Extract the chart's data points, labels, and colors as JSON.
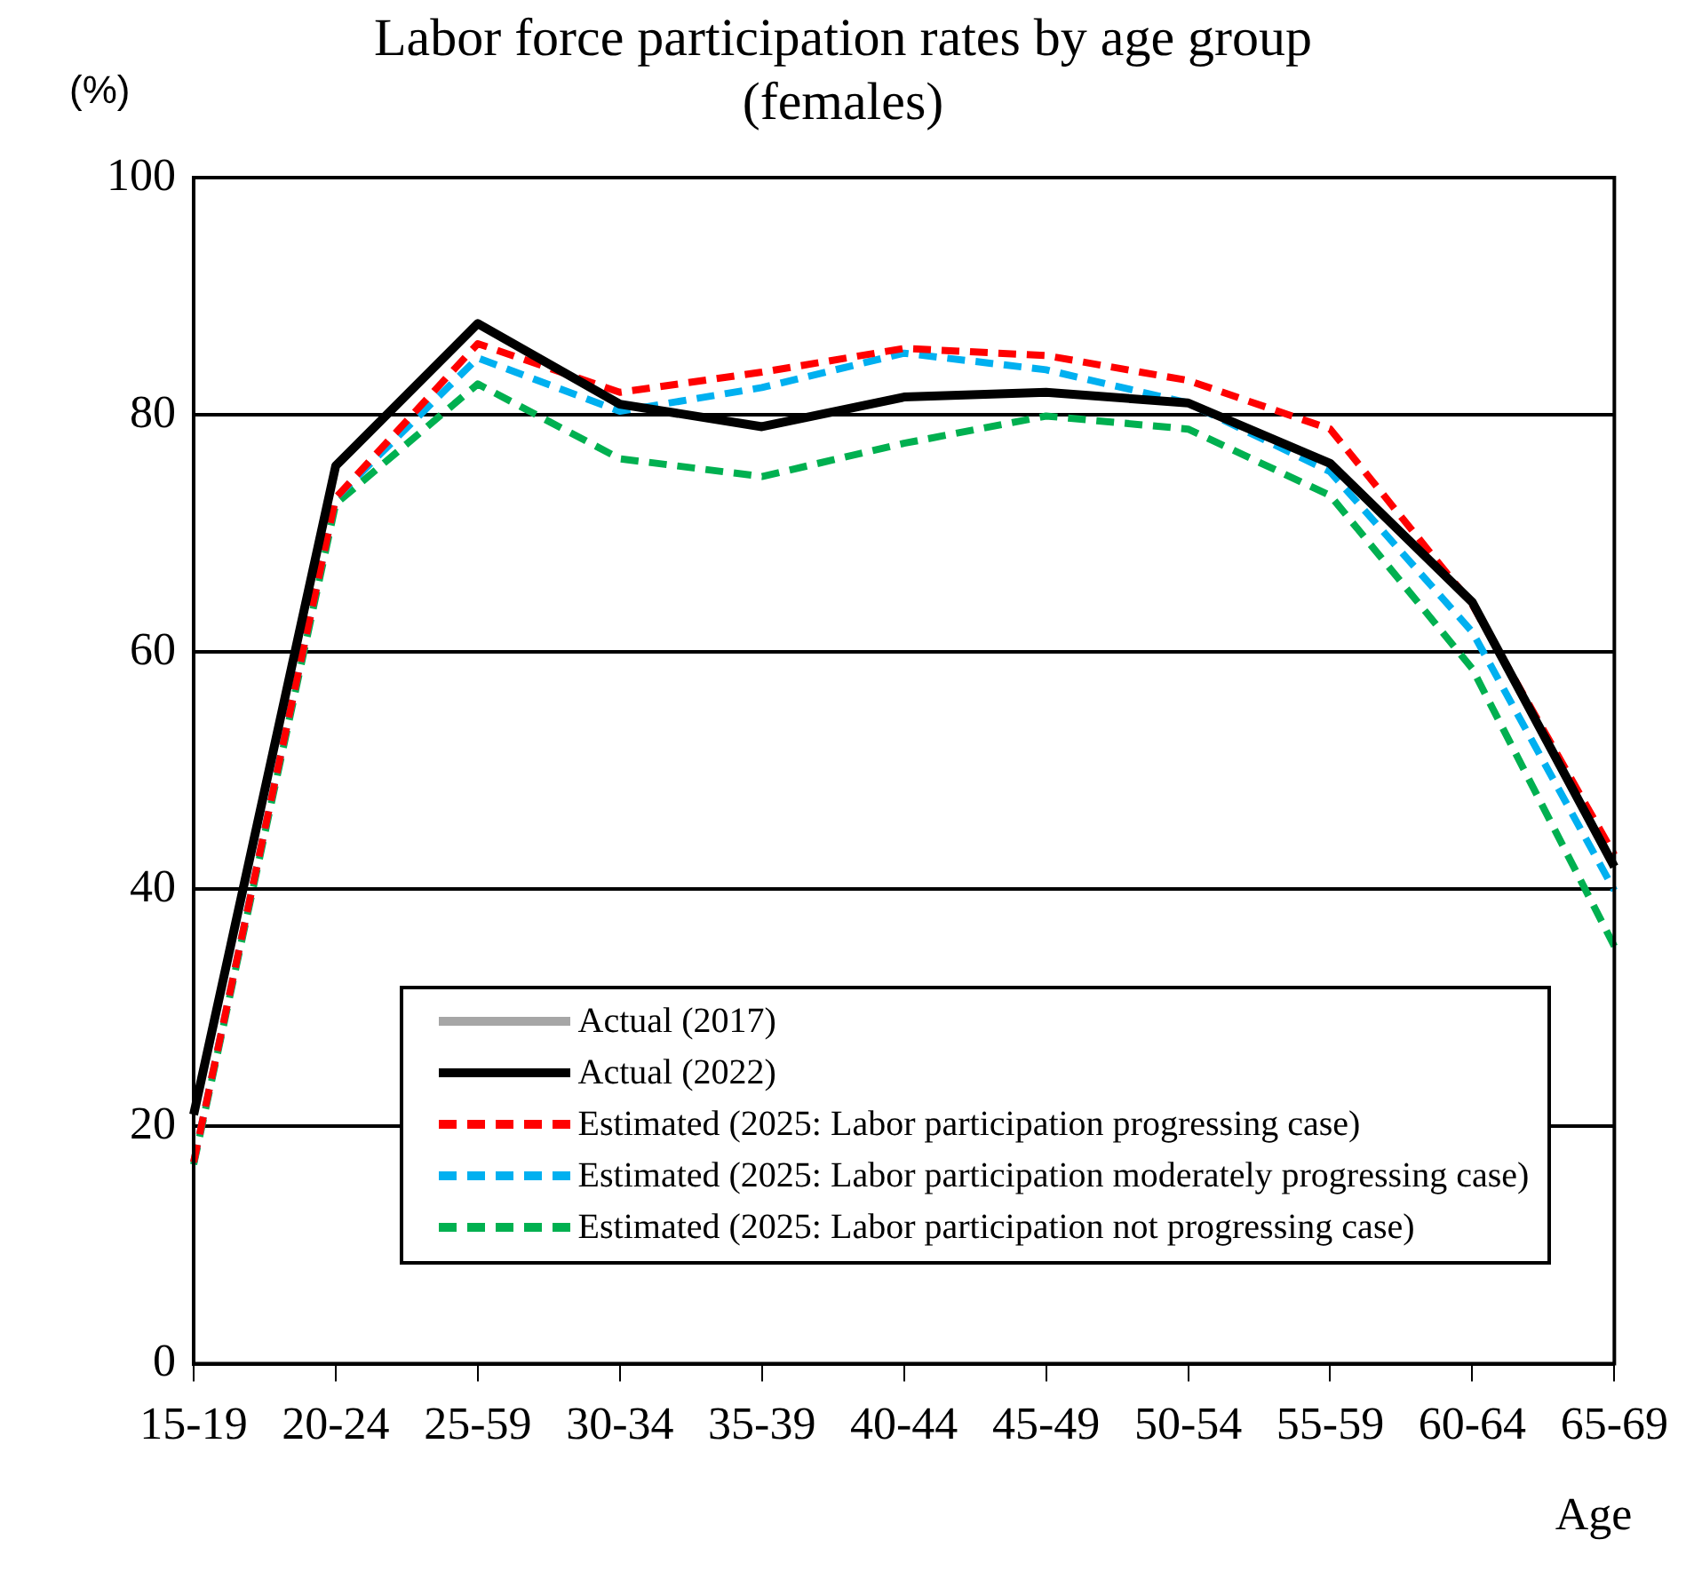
{
  "chart_data": {
    "type": "line",
    "title": "Labor force participation rates by age group (females)",
    "ylabel": "(%)",
    "xlabel": "Age",
    "categories": [
      "15-19",
      "20-24",
      "25-59",
      "30-34",
      "35-39",
      "40-44",
      "45-49",
      "50-54",
      "55-59",
      "60-64",
      "65-69"
    ],
    "ylim": [
      0,
      100
    ],
    "yticks": [
      0,
      20,
      40,
      60,
      80,
      100
    ],
    "grid": "y",
    "legend": "bottom right",
    "marker": "none",
    "series": [
      {
        "name": "Actual (2017)",
        "color": "#a6a6a6",
        "line_style": "solid",
        "values": [
          null,
          null,
          null,
          null,
          null,
          null,
          null,
          null,
          null,
          null,
          null
        ]
      },
      {
        "name": "Actual (2022)",
        "color": "#000000",
        "line_style": "solid",
        "values": [
          21.0,
          75.7,
          87.7,
          80.9,
          79.0,
          81.5,
          81.9,
          81.0,
          75.9,
          64.2,
          41.9
        ]
      },
      {
        "name": "Estimated (2025: Labor participation progressing case)",
        "color": "#ff0000",
        "line_style": "dashed",
        "values": [
          17,
          73,
          86.0,
          81.9,
          83.6,
          85.6,
          85.0,
          82.9,
          78.8,
          64.0,
          42.9
        ]
      },
      {
        "name": "Estimated (2025: Labor participation moderately progressing case)",
        "color": "#00b0f0",
        "line_style": "dashed",
        "values": [
          17,
          73,
          84.8,
          80.3,
          82.3,
          85.2,
          83.8,
          81.0,
          75.2,
          61.7,
          39.9
        ]
      },
      {
        "name": "Estimated (2025: Labor participation not progressing case)",
        "color": "#00b050",
        "line_style": "dashed",
        "values": [
          16.8,
          72.5,
          82.6,
          76.3,
          74.8,
          77.6,
          79.9,
          78.8,
          73.2,
          58.6,
          35.2
        ]
      }
    ]
  }
}
